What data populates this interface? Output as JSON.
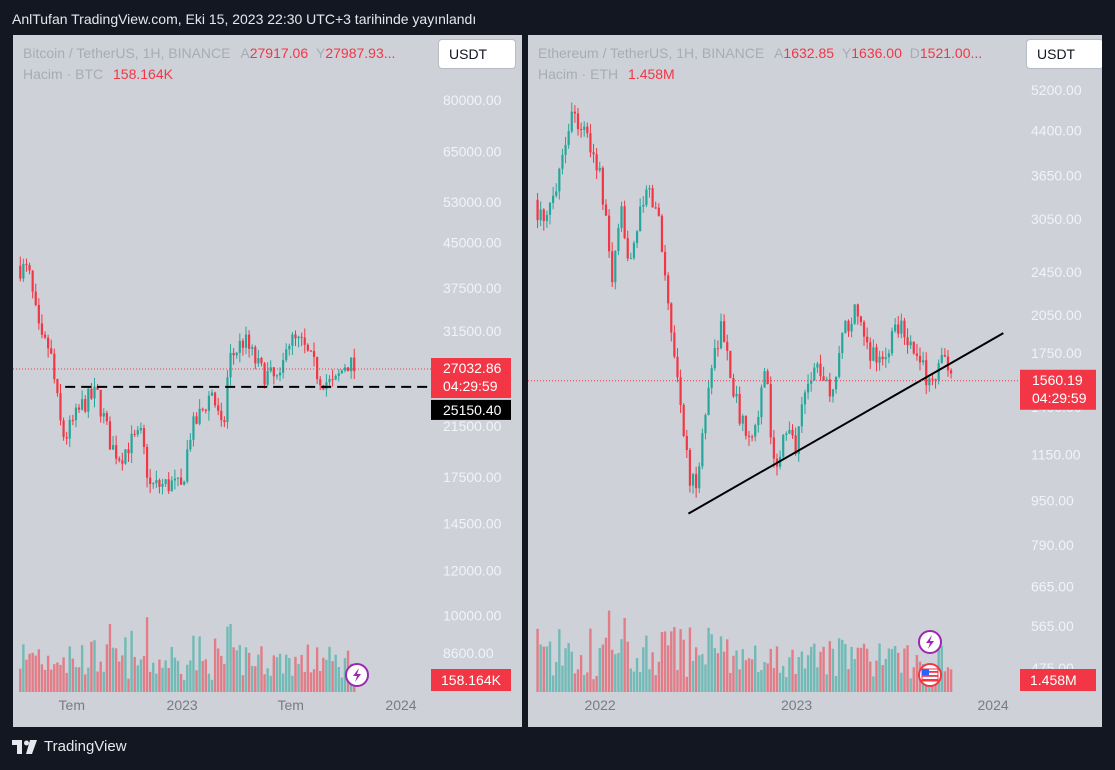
{
  "header": "AnlTufan TradingView.com, Eki 15, 2023 22:30 UTC+3 tarihinde yayınlandı",
  "footer": {
    "brand": "TradingView"
  },
  "colors": {
    "up": "#26a69a",
    "down": "#f23645",
    "bg": "#ced2d8"
  },
  "panels": [
    {
      "symbol": "Bitcoin / TetherUS, 1H, BINANCE",
      "ohlc": [
        {
          "k": "A",
          "v": "27917.06"
        },
        {
          "k": "Y",
          "v": "27987.93"
        }
      ],
      "ohlc_more": "...",
      "volume_label": "Hacim · BTC",
      "volume_value": "158.164K",
      "quote": "USDT",
      "price_badge": "27032.86",
      "countdown": "04:29:59",
      "level_badge": "25150.40",
      "volume_badge": "158.164K"
    },
    {
      "symbol": "Ethereum / TetherUS, 1H, BINANCE",
      "ohlc": [
        {
          "k": "A",
          "v": "1632.85"
        },
        {
          "k": "Y",
          "v": "1636.00"
        },
        {
          "k": "D",
          "v": "1521.00"
        }
      ],
      "ohlc_more": "...",
      "volume_label": "Hacim · ETH",
      "volume_value": "1.458M",
      "quote": "USDT",
      "price_badge": "1560.19",
      "countdown": "04:29:59",
      "volume_badge": "1.458M"
    }
  ],
  "chart_data": [
    {
      "type": "candlestick",
      "title": "Bitcoin / TetherUS, 1H, BINANCE",
      "yscale": "log",
      "yticks": [
        8600,
        10000,
        12000,
        14500,
        17500,
        21500,
        25150.4,
        27032.86,
        31500,
        37500,
        45000,
        53000,
        65000,
        80000
      ],
      "ytick_labels": [
        "8600.00",
        "10000.00",
        "12000.00",
        "14500.00",
        "17500.00",
        "21500.00",
        "25150.40",
        "27032.86",
        "31500.00",
        "37500.00",
        "45000.00",
        "53000.00",
        "65000.00",
        "80000.00"
      ],
      "xticks": [
        "Tem",
        "2023",
        "Tem",
        "2024"
      ],
      "xtick_pos": [
        "2022-07",
        "2023-01",
        "2023-07",
        "2024-01"
      ],
      "close_path": [
        [
          "2022-04",
          41000
        ],
        [
          "2022-04-20",
          40000
        ],
        [
          "2022-05-10",
          30000
        ],
        [
          "2022-05-25",
          29500
        ],
        [
          "2022-06-14",
          21000
        ],
        [
          "2022-06-20",
          20500
        ],
        [
          "2022-07-20",
          23500
        ],
        [
          "2022-08-12",
          24500
        ],
        [
          "2022-09-05",
          19800
        ],
        [
          "2022-09-20",
          19000
        ],
        [
          "2022-10-05",
          20000
        ],
        [
          "2022-10-25",
          20600
        ],
        [
          "2022-11-08",
          16800
        ],
        [
          "2022-12-15",
          17000
        ],
        [
          "2022-12-31",
          16600
        ],
        [
          "2023-01-14",
          20800
        ],
        [
          "2023-02-05",
          23000
        ],
        [
          "2023-02-20",
          24800
        ],
        [
          "2023-03-10",
          20500
        ],
        [
          "2023-03-20",
          28000
        ],
        [
          "2023-04-14",
          30400
        ],
        [
          "2023-05-12",
          26800
        ],
        [
          "2023-06-15",
          25500
        ],
        [
          "2023-06-23",
          30500
        ],
        [
          "2023-07-20",
          29800
        ],
        [
          "2023-08-18",
          26200
        ],
        [
          "2023-09-11",
          25200
        ],
        [
          "2023-10-02",
          27900
        ],
        [
          "2023-10-15",
          27032.86
        ]
      ],
      "hline": {
        "value": 25150.4,
        "style": "dashed",
        "color": "#000000"
      },
      "last_price": 27032.86,
      "volume_last": "158.164K"
    },
    {
      "type": "candlestick",
      "title": "Ethereum / TetherUS, 1H, BINANCE",
      "yscale": "log",
      "yticks": [
        475,
        565,
        665,
        790,
        950,
        1150,
        1400,
        1560.19,
        1750,
        2050,
        2450,
        3050,
        3650,
        4400,
        5200
      ],
      "ytick_labels": [
        "475.00",
        "565.00",
        "665.00",
        "790.00",
        "950.00",
        "1150.00",
        "1400.00",
        "1560.19",
        "1750.00",
        "2050.00",
        "2450.00",
        "3050.00",
        "3650.00",
        "4400.00",
        "5200.00"
      ],
      "xticks": [
        "2022",
        "2023",
        "2024"
      ],
      "xtick_pos": [
        "2022-01",
        "2023-01",
        "2024-01"
      ],
      "close_path": [
        [
          "2021-09-01",
          3300
        ],
        [
          "2021-09-20",
          2900
        ],
        [
          "2021-10-15",
          3700
        ],
        [
          "2021-11-10",
          4800
        ],
        [
          "2021-12-01",
          4400
        ],
        [
          "2021-12-31",
          3700
        ],
        [
          "2022-01-24",
          2350
        ],
        [
          "2022-02-10",
          3100
        ],
        [
          "2022-02-24",
          2600
        ],
        [
          "2022-03-30",
          3450
        ],
        [
          "2022-04-20",
          3050
        ],
        [
          "2022-05-12",
          2000
        ],
        [
          "2022-06-18",
          1000
        ],
        [
          "2022-07-01",
          1050
        ],
        [
          "2022-07-28",
          1700
        ],
        [
          "2022-08-14",
          1950
        ],
        [
          "2022-09-07",
          1500
        ],
        [
          "2022-09-20",
          1300
        ],
        [
          "2022-10-15",
          1280
        ],
        [
          "2022-11-05",
          1620
        ],
        [
          "2022-11-20",
          1100
        ],
        [
          "2022-12-15",
          1260
        ],
        [
          "2022-12-31",
          1190
        ],
        [
          "2023-01-20",
          1580
        ],
        [
          "2023-02-15",
          1650
        ],
        [
          "2023-03-10",
          1450
        ],
        [
          "2023-03-20",
          1800
        ],
        [
          "2023-04-16",
          2100
        ],
        [
          "2023-05-12",
          1780
        ],
        [
          "2023-06-15",
          1700
        ],
        [
          "2023-07-01",
          1950
        ],
        [
          "2023-07-15",
          2000
        ],
        [
          "2023-08-18",
          1650
        ],
        [
          "2023-09-11",
          1550
        ],
        [
          "2023-10-01",
          1730
        ],
        [
          "2023-10-12",
          1540
        ],
        [
          "2023-10-15",
          1560.19
        ]
      ],
      "trendline": {
        "from": [
          "2022-06-14",
          900
        ],
        "to": [
          "2024-01-20",
          1900
        ],
        "color": "#000000"
      },
      "last_price": 1560.19,
      "volume_last": "1.458M"
    }
  ]
}
